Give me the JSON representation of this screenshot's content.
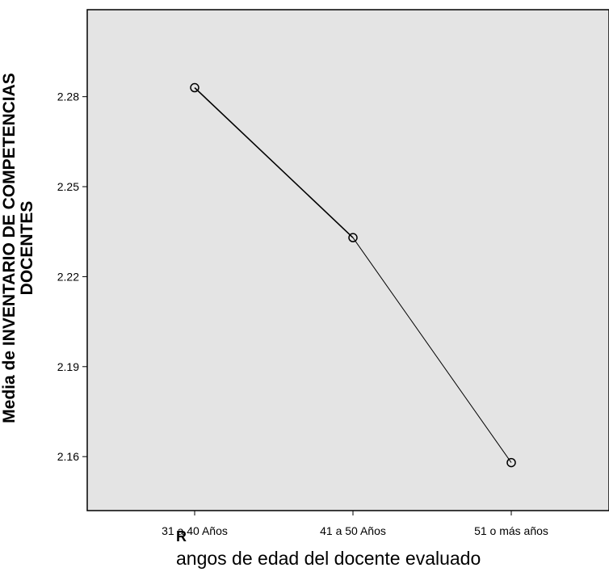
{
  "chart_data": {
    "type": "line",
    "categories": [
      "31 a 40 Años",
      "41 a 50 Años",
      "51 o más años"
    ],
    "values": [
      2.283,
      2.233,
      2.158
    ],
    "xlabel": "angos de edad del docente evaluado",
    "xlabel_fragment": "R",
    "ylabel_line1": "Media de INVENTARIO DE COMPETENCIAS",
    "ylabel_line2": "DOCENTES",
    "yticks": [
      "2.16",
      "2.19",
      "2.22",
      "2.25",
      "2.28"
    ],
    "ytick_values": [
      2.16,
      2.19,
      2.22,
      2.25,
      2.28
    ],
    "ylim": [
      2.142,
      2.309
    ],
    "plot_background": "#e4e4e4",
    "line_color": "#000000",
    "marker": "open-circle",
    "grid": false
  }
}
